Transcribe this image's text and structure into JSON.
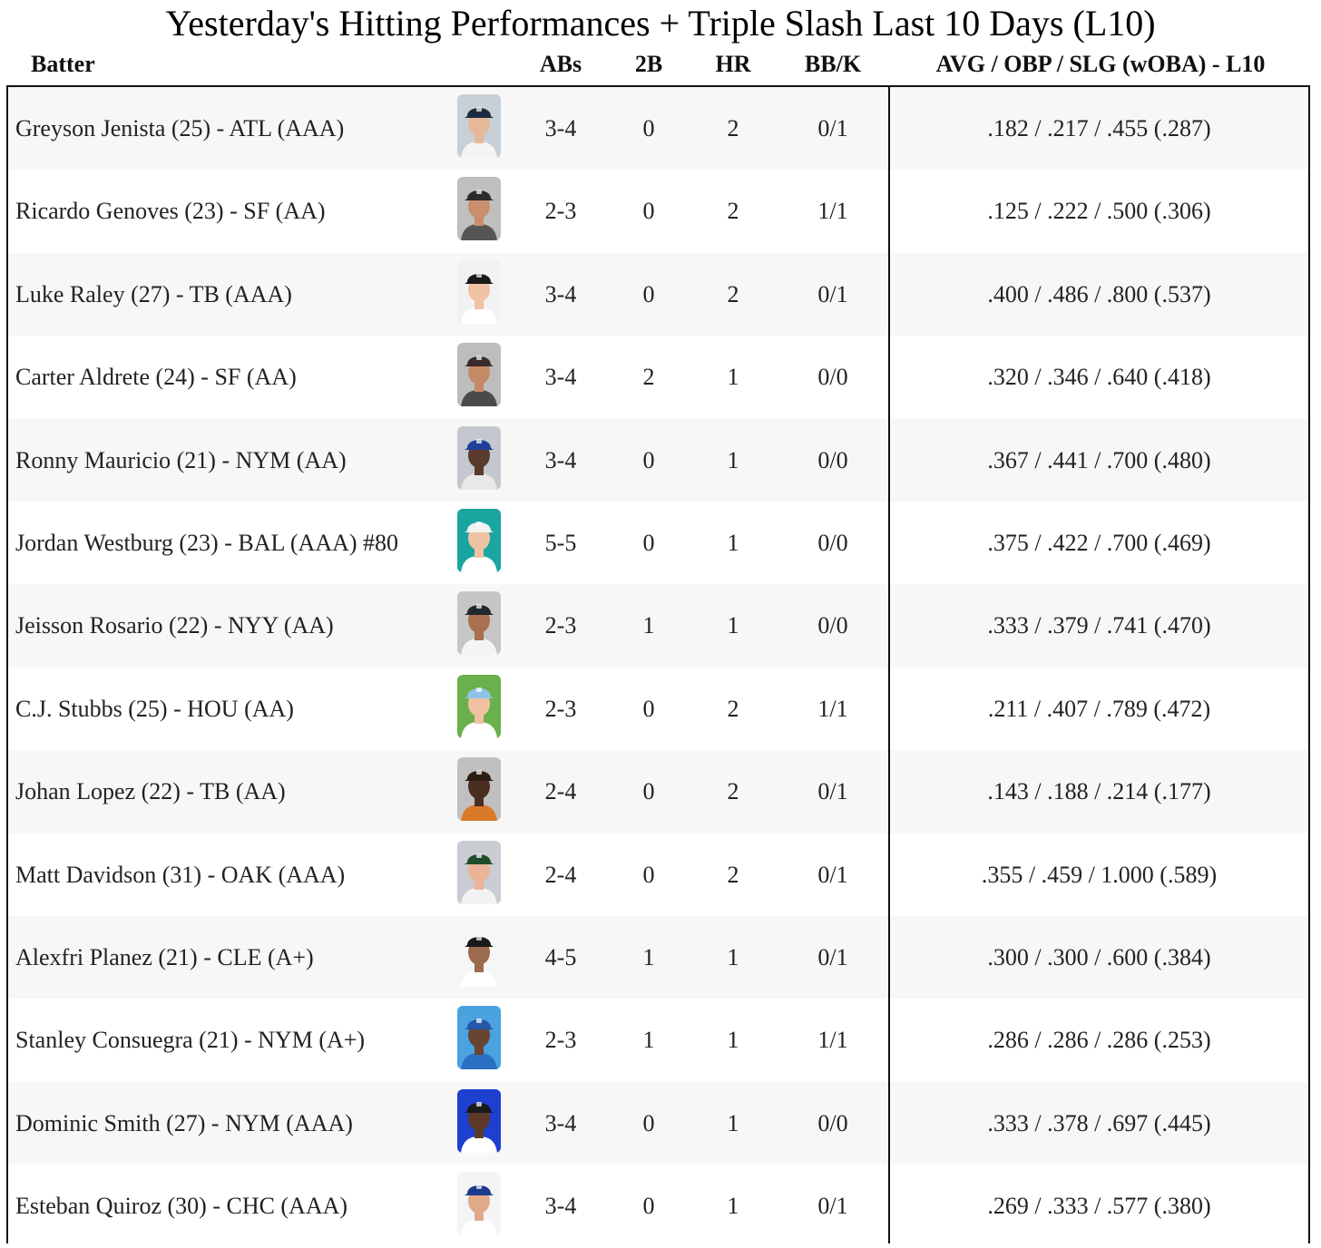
{
  "title": "Yesterday's Hitting Performances + Triple Slash Last 10 Days (L10)",
  "columns": {
    "batter": "Batter",
    "abs": "ABs",
    "doubles": "2B",
    "hr": "HR",
    "bbk": "BB/K",
    "slash": "AVG / OBP / SLG (wOBA) - L10"
  },
  "rows": [
    {
      "batter": "Greyson Jenista (25) - ATL (AAA)",
      "abs": "3-4",
      "doubles": "0",
      "hr": "2",
      "bbk": "0/1",
      "slash": ".182 / .217 / .455 (.287)",
      "avatar": {
        "icon": "player-headshot-icon",
        "bg": "#c9cfd6",
        "cap": "#1c2a3e",
        "skin": "#e6b89a",
        "jersey": "#f4f4f4"
      }
    },
    {
      "batter": "Ricardo Genoves (23) - SF (AA)",
      "abs": "2-3",
      "doubles": "0",
      "hr": "2",
      "bbk": "1/1",
      "slash": ".125 / .222 / .500 (.306)",
      "avatar": {
        "icon": "player-headshot-icon",
        "bg": "#bfbfbf",
        "cap": "#2b2b2b",
        "skin": "#c98e6b",
        "jersey": "#555555"
      }
    },
    {
      "batter": "Luke Raley (27) - TB (AAA)",
      "abs": "3-4",
      "doubles": "0",
      "hr": "2",
      "bbk": "0/1",
      "slash": ".400 / .486 / .800 (.537)",
      "avatar": {
        "icon": "player-headshot-icon",
        "bg": "#f2f2f2",
        "cap": "#1a1a1a",
        "skin": "#f0c1a3",
        "jersey": "#ffffff"
      }
    },
    {
      "batter": "Carter Aldrete (24) - SF (AA)",
      "abs": "3-4",
      "doubles": "2",
      "hr": "1",
      "bbk": "0/0",
      "slash": ".320 / .346 / .640 (.418)",
      "avatar": {
        "icon": "player-headshot-icon",
        "bg": "#bdbdbd",
        "cap": "#3a2a2a",
        "skin": "#c48a66",
        "jersey": "#4a4a4a"
      }
    },
    {
      "batter": "Ronny Mauricio (21) - NYM (AA)",
      "abs": "3-4",
      "doubles": "0",
      "hr": "1",
      "bbk": "0/0",
      "slash": ".367 / .441 / .700 (.480)",
      "avatar": {
        "icon": "player-headshot-icon",
        "bg": "#c4c8ce",
        "cap": "#1f3f9a",
        "skin": "#5a3a2a",
        "jersey": "#e8e8e8"
      }
    },
    {
      "batter": "Jordan Westburg (23) - BAL (AAA) #80",
      "abs": "5-5",
      "doubles": "0",
      "hr": "1",
      "bbk": "0/0",
      "slash": ".375 / .422 / .700 (.469)",
      "avatar": {
        "icon": "player-headshot-icon",
        "bg": "#1aa5a0",
        "cap": "#f2f2f2",
        "skin": "#f0c2a4",
        "jersey": "#ffffff"
      }
    },
    {
      "batter": "Jeisson Rosario (22) - NYY (AA)",
      "abs": "2-3",
      "doubles": "1",
      "hr": "1",
      "bbk": "0/0",
      "slash": ".333 / .379 / .741 (.470)",
      "avatar": {
        "icon": "player-headshot-icon",
        "bg": "#c6c6c6",
        "cap": "#1f2a30",
        "skin": "#a8704e",
        "jersey": "#f4f4f4"
      }
    },
    {
      "batter": "C.J. Stubbs (25) - HOU (AA)",
      "abs": "2-3",
      "doubles": "0",
      "hr": "2",
      "bbk": "1/1",
      "slash": ".211 / .407 / .789 (.472)",
      "avatar": {
        "icon": "player-headshot-icon",
        "bg": "#6ab04c",
        "cap": "#8ec3e6",
        "skin": "#f0c1a3",
        "jersey": "#ffffff"
      }
    },
    {
      "batter": "Johan Lopez (22) - TB (AA)",
      "abs": "2-4",
      "doubles": "0",
      "hr": "2",
      "bbk": "0/1",
      "slash": ".143 / .188 / .214 (.177)",
      "avatar": {
        "icon": "player-headshot-icon",
        "bg": "#c0c0c0",
        "cap": "#2b1e14",
        "skin": "#4a2e20",
        "jersey": "#d97a2b"
      }
    },
    {
      "batter": "Matt Davidson (31) - OAK (AAA)",
      "abs": "2-4",
      "doubles": "0",
      "hr": "2",
      "bbk": "0/1",
      "slash": ".355 / .459 / 1.000 (.589)",
      "avatar": {
        "icon": "player-headshot-icon",
        "bg": "#c9ccd2",
        "cap": "#1e4d2b",
        "skin": "#e9b596",
        "jersey": "#f2f2f2"
      }
    },
    {
      "batter": "Alexfri Planez (21) - CLE (A+)",
      "abs": "4-5",
      "doubles": "1",
      "hr": "1",
      "bbk": "0/1",
      "slash": ".300 / .300 / .600 (.384)",
      "avatar": {
        "icon": "player-headshot-icon",
        "bg": "#f6f6f6",
        "cap": "#1a1a1a",
        "skin": "#9c6a4c",
        "jersey": "#ffffff"
      }
    },
    {
      "batter": "Stanley Consuegra (21) - NYM (A+)",
      "abs": "2-3",
      "doubles": "1",
      "hr": "1",
      "bbk": "1/1",
      "slash": ".286 / .286 / .286 (.253)",
      "avatar": {
        "icon": "player-headshot-icon",
        "bg": "#4aa3df",
        "cap": "#2457a8",
        "skin": "#6a4432",
        "jersey": "#2a6fc4"
      }
    },
    {
      "batter": "Dominic Smith (27) - NYM (AAA)",
      "abs": "3-4",
      "doubles": "0",
      "hr": "1",
      "bbk": "0/0",
      "slash": ".333 / .378 / .697 (.445)",
      "avatar": {
        "icon": "player-headshot-icon",
        "bg": "#1e3fd0",
        "cap": "#1a1a1a",
        "skin": "#5c3a28",
        "jersey": "#ffffff"
      }
    },
    {
      "batter": "Esteban Quiroz (30) - CHC (AAA)",
      "abs": "3-4",
      "doubles": "0",
      "hr": "1",
      "bbk": "0/1",
      "slash": ".269 / .333 / .577 (.380)",
      "avatar": {
        "icon": "player-headshot-icon",
        "bg": "#f4f4f4",
        "cap": "#1b3a8c",
        "skin": "#e0aa88",
        "jersey": "#ffffff"
      }
    }
  ]
}
